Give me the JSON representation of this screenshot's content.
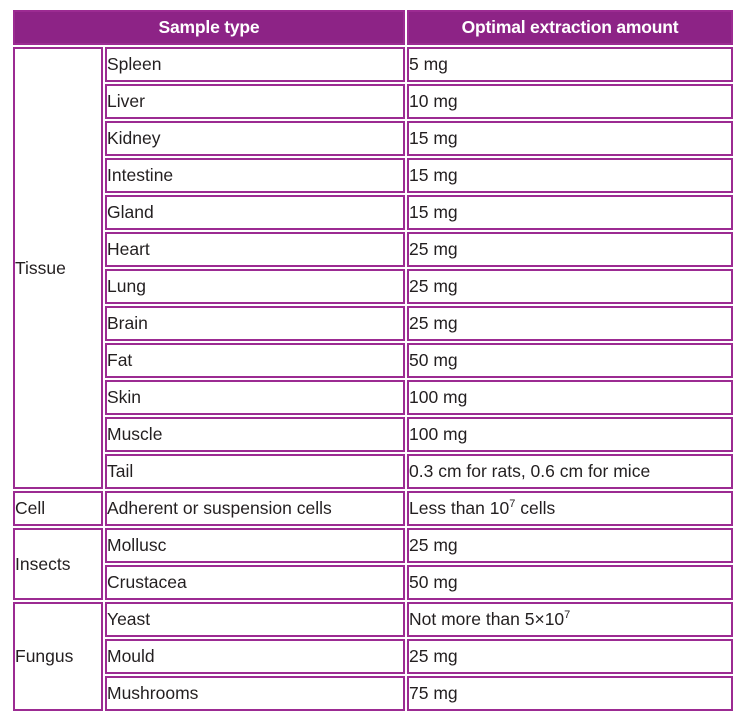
{
  "colors": {
    "header_bg": "#8d2386",
    "header_text": "#ffffff",
    "border": "#9c2b92",
    "text": "#231f20",
    "page_bg": "#ffffff"
  },
  "table": {
    "columns": {
      "header_sample_type": "Sample type",
      "header_amount": "Optimal extraction amount"
    },
    "groups": [
      {
        "label": "Tissue",
        "rows": [
          {
            "sample": "Spleen",
            "amount_pre": "5 mg",
            "amount_sup": "",
            "amount_post": ""
          },
          {
            "sample": "Liver",
            "amount_pre": "10 mg",
            "amount_sup": "",
            "amount_post": ""
          },
          {
            "sample": "Kidney",
            "amount_pre": "15 mg",
            "amount_sup": "",
            "amount_post": ""
          },
          {
            "sample": "Intestine",
            "amount_pre": "15 mg",
            "amount_sup": "",
            "amount_post": ""
          },
          {
            "sample": "Gland",
            "amount_pre": "15 mg",
            "amount_sup": "",
            "amount_post": ""
          },
          {
            "sample": "Heart",
            "amount_pre": "25 mg",
            "amount_sup": "",
            "amount_post": ""
          },
          {
            "sample": "Lung",
            "amount_pre": "25 mg",
            "amount_sup": "",
            "amount_post": ""
          },
          {
            "sample": "Brain",
            "amount_pre": "25 mg",
            "amount_sup": "",
            "amount_post": ""
          },
          {
            "sample": "Fat",
            "amount_pre": "50 mg",
            "amount_sup": "",
            "amount_post": ""
          },
          {
            "sample": "Skin",
            "amount_pre": "100 mg",
            "amount_sup": "",
            "amount_post": ""
          },
          {
            "sample": "Muscle",
            "amount_pre": "100 mg",
            "amount_sup": "",
            "amount_post": ""
          },
          {
            "sample": "Tail",
            "amount_pre": "0.3 cm for rats, 0.6 cm for mice",
            "amount_sup": "",
            "amount_post": ""
          }
        ]
      },
      {
        "label": "Cell",
        "rows": [
          {
            "sample": "Adherent or suspension cells",
            "amount_pre": "Less than 10",
            "amount_sup": "7",
            "amount_post": " cells"
          }
        ]
      },
      {
        "label": "Insects",
        "rows": [
          {
            "sample": "Mollusc",
            "amount_pre": "25 mg",
            "amount_sup": "",
            "amount_post": ""
          },
          {
            "sample": "Crustacea",
            "amount_pre": "50 mg",
            "amount_sup": "",
            "amount_post": ""
          }
        ]
      },
      {
        "label": "Fungus",
        "rows": [
          {
            "sample": "Yeast",
            "amount_pre": "Not more than 5×10",
            "amount_sup": "7",
            "amount_post": ""
          },
          {
            "sample": "Mould",
            "amount_pre": "25 mg",
            "amount_sup": "",
            "amount_post": ""
          },
          {
            "sample": "Mushrooms",
            "amount_pre": "75 mg",
            "amount_sup": "",
            "amount_post": ""
          }
        ]
      }
    ]
  }
}
